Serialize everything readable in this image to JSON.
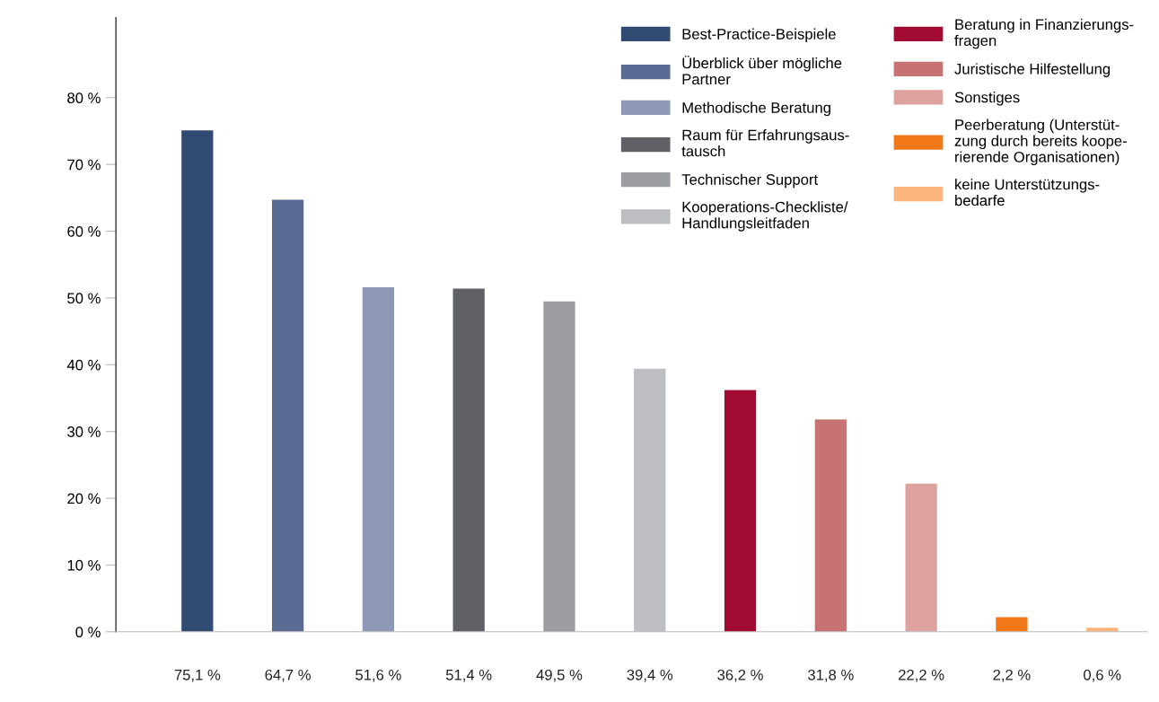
{
  "chart_data": {
    "type": "bar",
    "categories": [
      null,
      null,
      null,
      null,
      null,
      null,
      null,
      null,
      null,
      null,
      null
    ],
    "series": [
      {
        "name": "Best-Practice-Beispiele",
        "color": "#314a72",
        "values": [
          75.1,
          null,
          null,
          null,
          null,
          null,
          null,
          null,
          null,
          null,
          null
        ],
        "value_labels": [
          "75,1 %",
          null,
          null,
          null,
          null,
          null,
          null,
          null,
          null,
          null,
          null
        ]
      },
      {
        "name": "Überblick über mögliche\nPartner",
        "color": "#5a6b93",
        "values": [
          null,
          64.7,
          null,
          null,
          null,
          null,
          null,
          null,
          null,
          null,
          null
        ],
        "value_labels": [
          null,
          "64,7 %",
          null,
          null,
          null,
          null,
          null,
          null,
          null,
          null,
          null
        ]
      },
      {
        "name": "Methodische Beratung",
        "color": "#8e99b7",
        "values": [
          null,
          null,
          51.6,
          null,
          null,
          null,
          null,
          null,
          null,
          null,
          null
        ],
        "value_labels": [
          null,
          null,
          "51,6 %",
          null,
          null,
          null,
          null,
          null,
          null,
          null,
          null
        ]
      },
      {
        "name": "Raum für Erfahrungsaus-\ntausch",
        "color": "#606166",
        "values": [
          null,
          null,
          null,
          51.4,
          null,
          null,
          null,
          null,
          null,
          null,
          null
        ],
        "value_labels": [
          null,
          null,
          null,
          "51,4 %",
          null,
          null,
          null,
          null,
          null,
          null,
          null
        ]
      },
      {
        "name": "Technischer Support",
        "color": "#9d9ea3",
        "values": [
          null,
          null,
          null,
          null,
          49.5,
          null,
          null,
          null,
          null,
          null,
          null
        ],
        "value_labels": [
          null,
          null,
          null,
          null,
          "49,5 %",
          null,
          null,
          null,
          null,
          null,
          null
        ]
      },
      {
        "name": "Kooperations-Checkliste/\nHandlungsleitfaden",
        "color": "#bdbec2",
        "values": [
          null,
          null,
          null,
          null,
          null,
          39.4,
          null,
          null,
          null,
          null,
          null
        ],
        "value_labels": [
          null,
          null,
          null,
          null,
          null,
          "39,4 %",
          null,
          null,
          null,
          null,
          null
        ]
      },
      {
        "name": "Beratung in Finanzierungs-\nfragen",
        "color": "#a10a32",
        "values": [
          null,
          null,
          null,
          null,
          null,
          null,
          36.2,
          null,
          null,
          null,
          null
        ],
        "value_labels": [
          null,
          null,
          null,
          null,
          null,
          null,
          "36,2 %",
          null,
          null,
          null,
          null
        ]
      },
      {
        "name": "Juristische Hilfestellung",
        "color": "#c87373",
        "values": [
          null,
          null,
          null,
          null,
          null,
          null,
          null,
          31.8,
          null,
          null,
          null
        ],
        "value_labels": [
          null,
          null,
          null,
          null,
          null,
          null,
          null,
          "31,8 %",
          null,
          null,
          null
        ]
      },
      {
        "name": "Sonstiges",
        "color": "#dea29f",
        "values": [
          null,
          null,
          null,
          null,
          null,
          null,
          null,
          null,
          22.2,
          null,
          null
        ],
        "value_labels": [
          null,
          null,
          null,
          null,
          null,
          null,
          null,
          null,
          "22,2 %",
          null,
          null
        ]
      },
      {
        "name": "Peerberatung (Unterstüt-\nzung durch bereits koope-\nrierende Organisationen)",
        "color": "#f07818",
        "values": [
          null,
          null,
          null,
          null,
          null,
          null,
          null,
          null,
          null,
          2.2,
          null
        ],
        "value_labels": [
          null,
          null,
          null,
          null,
          null,
          null,
          null,
          null,
          null,
          "2,2 %",
          null
        ]
      },
      {
        "name": "keine Unterstützungs-\nbedarfe",
        "color": "#fbb57c",
        "values": [
          null,
          null,
          null,
          null,
          null,
          null,
          null,
          null,
          null,
          null,
          0.6
        ],
        "value_labels": [
          null,
          null,
          null,
          null,
          null,
          null,
          null,
          null,
          null,
          null,
          "0,6 %"
        ]
      }
    ],
    "ylim": [
      0,
      92
    ],
    "yticks": [
      {
        "value": 0,
        "label": "0 %"
      },
      {
        "value": 10,
        "label": "10 %"
      },
      {
        "value": 20,
        "label": "20 %"
      },
      {
        "value": 30,
        "label": "30 %"
      },
      {
        "value": 40,
        "label": "40 %"
      },
      {
        "value": 50,
        "label": "50 %"
      },
      {
        "value": 60,
        "label": "60 %"
      },
      {
        "value": 70,
        "label": "70 %"
      },
      {
        "value": 80,
        "label": "80 %"
      }
    ],
    "grid": false,
    "legend": "top right"
  }
}
